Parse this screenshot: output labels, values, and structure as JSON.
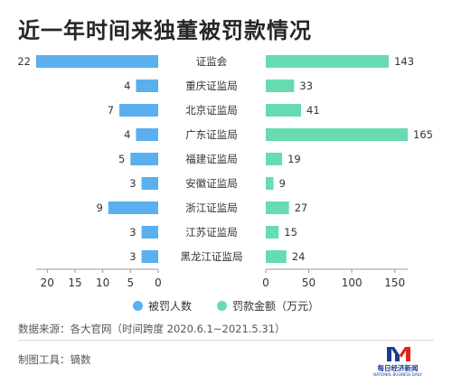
{
  "title": "近一年时间来独董被罚款情况",
  "chart_data": {
    "type": "bar",
    "orientation": "horizontal-butterfly",
    "categories": [
      "证监会",
      "重庆证监局",
      "北京证监局",
      "广东证监局",
      "福建证监局",
      "安徽证监局",
      "浙江证监局",
      "江苏证监局",
      "黑龙江证监局"
    ],
    "series": [
      {
        "name": "被罚人数",
        "values": [
          22,
          4,
          7,
          4,
          5,
          3,
          9,
          3,
          3
        ],
        "color": "#5aafef",
        "axis_ticks": [
          "20",
          "15",
          "10",
          "5",
          "0"
        ],
        "xlim": [
          0,
          22
        ],
        "direction": "left"
      },
      {
        "name": "罚款金额（万元）",
        "values": [
          143,
          33,
          41,
          165,
          19,
          9,
          27,
          15,
          24
        ],
        "color": "#66dcb0",
        "axis_ticks": [
          "0",
          "50",
          "100",
          "150"
        ],
        "xlim": [
          0,
          165
        ],
        "direction": "right"
      }
    ],
    "legend_position": "bottom-center",
    "grid": false
  },
  "footer": {
    "source": "数据来源：各大官网（时间跨度 2020.6.1~2021.5.31）",
    "tool": "制图工具：镝数"
  },
  "logo": {
    "name": "每日经济新闻",
    "sub": "NATIONAL BUSINESS DAILY",
    "colors": [
      "#1a3c8c",
      "#e2231a"
    ]
  }
}
